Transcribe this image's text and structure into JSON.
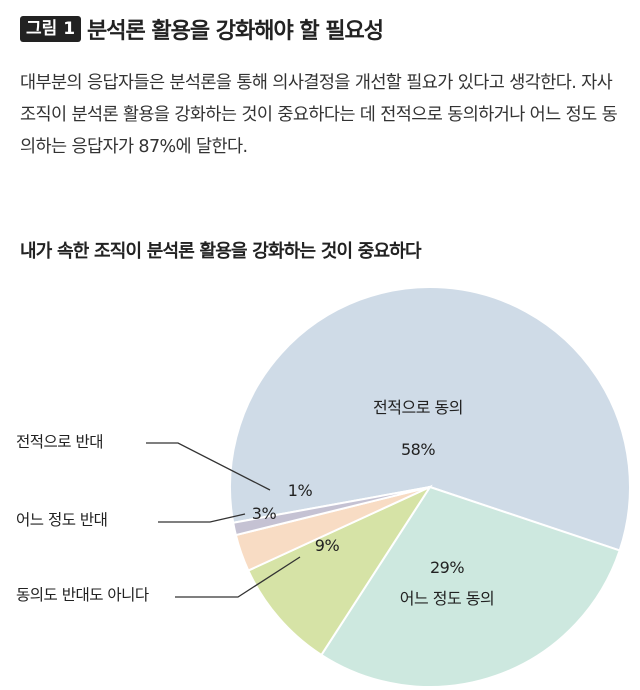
{
  "figure": {
    "badge": "그림 1",
    "title": "분석론 활용을 강화해야 할 필요성"
  },
  "description": "대부분의 응답자들은 분석론을 통해 의사결정을 개선할 필요가 있다고 생각한다. 자사 조직이 분석론 활용을 강화하는 것이 중요하다는 데 전적으로 동의하거나 어느 정도 동의하는 응답자가 87%에 달한다.",
  "chart_data": {
    "type": "pie",
    "title": "내가 속한 조직이 분석론 활용을 강화하는 것이 중요하다",
    "slices": [
      {
        "label": "전적으로 동의",
        "value": 58,
        "value_label": "58%",
        "color": "#cfdbe7"
      },
      {
        "label": "어느 정도 동의",
        "value": 29,
        "value_label": "29%",
        "color": "#cde8df"
      },
      {
        "label": "동의도 반대도 아니다",
        "value": 9,
        "value_label": "9%",
        "color": "#d6e3a6"
      },
      {
        "label": "어느 정도 반대",
        "value": 3,
        "value_label": "3%",
        "color": "#f8dcc4"
      },
      {
        "label": "전적으로 반대",
        "value": 1,
        "value_label": "1%",
        "color": "#c5c2d3"
      }
    ]
  }
}
